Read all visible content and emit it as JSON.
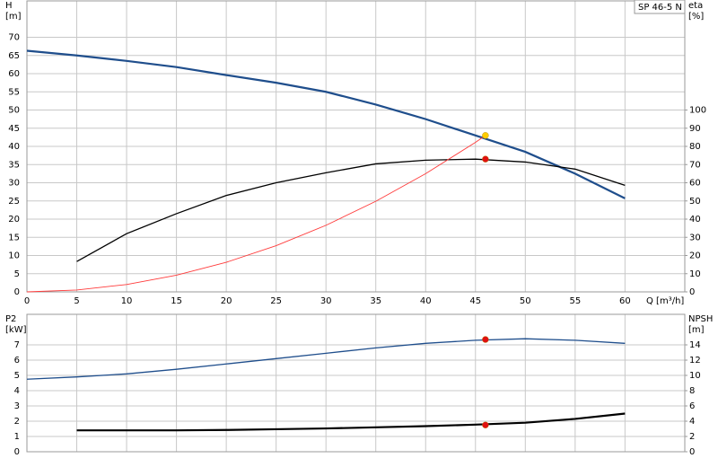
{
  "chart_data": [
    {
      "type": "line",
      "title": "SP 46-5 N",
      "ylabel": [
        "H",
        "[m]"
      ],
      "y2label": [
        "eta",
        "[%]"
      ],
      "xlabel": "Q [m³/h]",
      "xlim": [
        0,
        66
      ],
      "xticks": [
        0,
        5,
        10,
        15,
        20,
        25,
        30,
        35,
        40,
        45,
        50,
        55,
        60
      ],
      "ylim": [
        0,
        80
      ],
      "yticks": [
        0,
        5,
        10,
        15,
        20,
        25,
        30,
        35,
        40,
        45,
        50,
        55,
        60,
        65,
        70
      ],
      "y2lim": [
        0,
        160
      ],
      "y2ticks": [
        0,
        10,
        20,
        30,
        40,
        50,
        60,
        70,
        80,
        90,
        100
      ],
      "grid": true,
      "series": [
        {
          "color": "#1f4e8c",
          "width": 2.2,
          "x": [
            0,
            5,
            10,
            15,
            20,
            25,
            30,
            35,
            40,
            45,
            50,
            55,
            60
          ],
          "values": [
            66.3,
            65,
            63.5,
            61.8,
            59.6,
            57.5,
            55,
            51.5,
            47.5,
            43,
            38.5,
            32.5,
            25.7
          ]
        },
        {
          "color": "#000000",
          "width": 1.3,
          "axis": "y2",
          "x": [
            5,
            10,
            15,
            20,
            25,
            30,
            35,
            40,
            45,
            50,
            55,
            60
          ],
          "values": [
            16.7,
            32,
            43,
            53,
            60,
            65.5,
            70.4,
            72.4,
            73,
            71.4,
            67.5,
            58.6
          ]
        },
        {
          "color": "#ff3b3b",
          "width": 0.9,
          "x": [
            0,
            5,
            10,
            15,
            20,
            25,
            30,
            35,
            40,
            45,
            46
          ],
          "values": [
            0,
            0.51,
            2.03,
            4.57,
            8.13,
            12.7,
            18.3,
            24.9,
            32.5,
            41.1,
            43
          ]
        }
      ],
      "points": [
        {
          "x": 46,
          "y": 43,
          "color": "#ffcc00"
        },
        {
          "x": 46,
          "y": 73,
          "axis": "y2",
          "color": "#e01010"
        }
      ]
    },
    {
      "type": "line",
      "ylabel": [
        "P2",
        "[kW]"
      ],
      "y2label": [
        "NPSH",
        "[m]"
      ],
      "xlim": [
        0,
        66
      ],
      "xgrid": [
        0,
        5,
        10,
        15,
        20,
        25,
        30,
        35,
        40,
        45,
        50,
        55,
        60
      ],
      "ylim": [
        0,
        9
      ],
      "yticks": [
        0,
        1,
        2,
        3,
        4,
        5,
        6,
        7
      ],
      "y2lim": [
        0,
        18
      ],
      "y2ticks": [
        0,
        2,
        4,
        6,
        8,
        10,
        12,
        14
      ],
      "grid": true,
      "series": [
        {
          "color": "#1f4e8c",
          "width": 1.3,
          "x": [
            0,
            5,
            10,
            15,
            20,
            25,
            30,
            35,
            40,
            45,
            50,
            55,
            60
          ],
          "values": [
            4.75,
            4.9,
            5.1,
            5.4,
            5.75,
            6.1,
            6.45,
            6.8,
            7.1,
            7.3,
            7.4,
            7.3,
            7.1
          ]
        },
        {
          "color": "#000000",
          "width": 2.2,
          "axis": "y2",
          "x": [
            5,
            10,
            15,
            20,
            25,
            30,
            35,
            40,
            45,
            50,
            55,
            60
          ],
          "values": [
            2.8,
            2.8,
            2.8,
            2.85,
            2.95,
            3.05,
            3.2,
            3.35,
            3.55,
            3.8,
            4.3,
            5.0
          ]
        }
      ],
      "points": [
        {
          "x": 46,
          "y": 7.35,
          "color": "#e01010"
        },
        {
          "x": 46,
          "y": 3.5,
          "axis": "y2",
          "color": "#e01010"
        }
      ]
    }
  ]
}
